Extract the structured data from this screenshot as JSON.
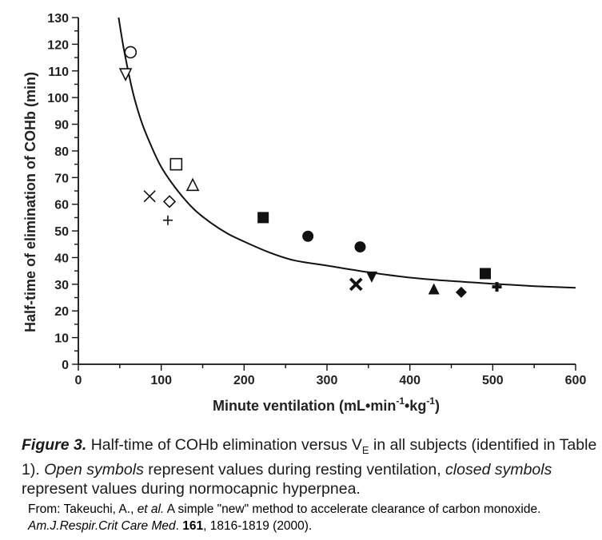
{
  "chart_data": {
    "type": "scatter",
    "xlabel_main": "Minute ventilation (mL•min",
    "xlabel_sup1": "-1",
    "xlabel_mid": "•kg",
    "xlabel_sup2": "-1",
    "xlabel_end": ")",
    "ylabel": "Half-time of elimination of COHb (min)",
    "xlim": [
      0,
      600
    ],
    "ylim": [
      0,
      130
    ],
    "x_ticks": [
      0,
      100,
      200,
      300,
      400,
      500,
      600
    ],
    "y_ticks": [
      0,
      10,
      20,
      30,
      40,
      50,
      60,
      70,
      80,
      90,
      100,
      110,
      120,
      130
    ],
    "grid": false,
    "fit_curve": {
      "x": [
        47,
        55,
        65,
        75,
        85,
        100,
        120,
        140,
        160,
        180,
        200,
        230,
        260,
        300,
        350,
        400,
        450,
        500,
        550,
        600
      ],
      "y": [
        133,
        118,
        103,
        92,
        84,
        74,
        65,
        58,
        53,
        49,
        46,
        42,
        39,
        37,
        34.5,
        32.5,
        31.2,
        30.2,
        29.3,
        28.7
      ]
    },
    "series": [
      {
        "marker": "open-circle",
        "points": [
          [
            63,
            117
          ]
        ]
      },
      {
        "marker": "open-triangle-down",
        "points": [
          [
            57,
            109
          ]
        ]
      },
      {
        "marker": "open-square",
        "points": [
          [
            118,
            75
          ]
        ]
      },
      {
        "marker": "open-triangle-up",
        "points": [
          [
            138,
            67
          ]
        ]
      },
      {
        "marker": "x",
        "points": [
          [
            86,
            63
          ]
        ]
      },
      {
        "marker": "open-diamond",
        "points": [
          [
            110,
            61
          ]
        ]
      },
      {
        "marker": "plus",
        "points": [
          [
            108,
            54
          ]
        ]
      },
      {
        "marker": "filled-square",
        "points": [
          [
            223,
            55
          ],
          [
            491,
            34
          ]
        ]
      },
      {
        "marker": "filled-circle",
        "points": [
          [
            277,
            48
          ],
          [
            340,
            44
          ]
        ]
      },
      {
        "marker": "bold-x",
        "points": [
          [
            335,
            30
          ]
        ]
      },
      {
        "marker": "filled-triangle-down",
        "points": [
          [
            354,
            33
          ]
        ]
      },
      {
        "marker": "filled-triangle-up",
        "points": [
          [
            429,
            28
          ]
        ]
      },
      {
        "marker": "filled-diamond",
        "points": [
          [
            462,
            27
          ]
        ]
      },
      {
        "marker": "bold-plus",
        "points": [
          [
            505,
            29
          ]
        ]
      }
    ]
  },
  "caption": {
    "fig_label": "Figure 3.",
    "text_1": " Half-time of COHb elimination versus V",
    "ve_sub": "E",
    "text_2": " in all subjects (identified in Table 1). ",
    "open_symbols": "Open symbols",
    "text_3": " represent values during resting ventilation, ",
    "closed_symbols": "closed symbols",
    "text_4": " represent values during normocapnic hyperpnea."
  },
  "citation": {
    "prefix": "From:  Takeuchi, A., ",
    "et_al": "et al.",
    "title": " A simple \"new\" method to accelerate clearance of carbon monoxide. ",
    "journal": "Am.J.Respir.Crit Care Med",
    "sep": ". ",
    "volume": "161",
    "pages": ", 1816-1819 (2000)."
  }
}
